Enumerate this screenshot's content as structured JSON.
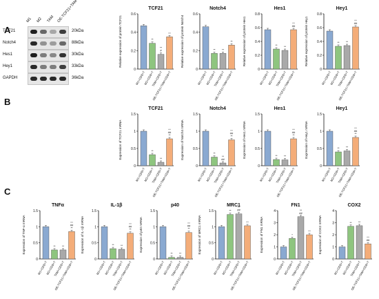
{
  "panels": {
    "a": "A",
    "b": "B",
    "c": "C"
  },
  "western_blot": {
    "lanes": [
      "M1",
      "M2",
      "TAM",
      "OE-TCF21+TAM"
    ],
    "rows": [
      {
        "protein": "TCF21",
        "kda": "20kDa",
        "intensity": [
          0.95,
          0.6,
          0.3,
          0.8
        ]
      },
      {
        "protein": "Notch4",
        "kda": "88kDa",
        "intensity": [
          0.9,
          0.4,
          0.35,
          0.6
        ]
      },
      {
        "protein": "Hes1",
        "kda": "30kDa",
        "intensity": [
          0.95,
          0.5,
          0.45,
          0.85
        ]
      },
      {
        "protein": "Hey1",
        "kda": "33kDa",
        "intensity": [
          0.9,
          0.5,
          0.5,
          0.8
        ]
      },
      {
        "protein": "GAPDH",
        "kda": "36kDa",
        "intensity": [
          0.9,
          0.9,
          0.9,
          0.9
        ]
      }
    ]
  },
  "colors": {
    "m1": "#8aa9d1",
    "m2": "#8ec57f",
    "tam": "#a9a9a9",
    "oe": "#f4ad79"
  },
  "chart_data": [
    {
      "id": "A1",
      "type": "bar",
      "title": "TCF21",
      "ylabel": "Relative expression of protein TCF21",
      "categories": [
        "M1+CD8+T",
        "M2+CD8+T",
        "TAM+CD8+T",
        "OE-TCF21+TAM+CD8+T"
      ],
      "values": [
        0.47,
        0.28,
        0.16,
        0.35
      ],
      "sig": [
        "",
        "**",
        "**\n#",
        "^^"
      ],
      "ylim": [
        0,
        0.6
      ],
      "yticks": [
        0.0,
        0.2,
        0.4,
        0.6
      ]
    },
    {
      "id": "A2",
      "type": "bar",
      "title": "Notch4",
      "ylabel": "Relative expression of protein Notch4",
      "categories": [
        "M1+CD8+T",
        "M2+CD8+T",
        "TAM+CD8+T",
        "OE-TCF21+TAM+CD8+T"
      ],
      "values": [
        0.46,
        0.17,
        0.17,
        0.26
      ],
      "sig": [
        "",
        "**",
        "**",
        "**"
      ],
      "ylim": [
        0,
        0.6
      ],
      "yticks": [
        0.0,
        0.2,
        0.4,
        0.6
      ]
    },
    {
      "id": "A3",
      "type": "bar",
      "title": "Hes1",
      "ylabel": "Relative expression of protein Hes1",
      "categories": [
        "M1+CD8+T",
        "M2+CD8+T",
        "TAM+CD8+T",
        "OE-TCF21+TAM+CD8+T"
      ],
      "values": [
        0.57,
        0.29,
        0.27,
        0.57
      ],
      "sig": [
        "",
        "**",
        "**",
        "^^\n##"
      ],
      "ylim": [
        0,
        0.8
      ],
      "yticks": [
        0.0,
        0.2,
        0.4,
        0.6,
        0.8
      ]
    },
    {
      "id": "A4",
      "type": "bar",
      "title": "Hey1",
      "ylabel": "Relative expression of protein Hey1",
      "categories": [
        "M1+CD8+T",
        "M2+CD8+T",
        "TAM+CD8+T",
        "OE-TCF21+TAM+CD8+T"
      ],
      "values": [
        0.55,
        0.33,
        0.34,
        0.61
      ],
      "sig": [
        "",
        "**",
        "**",
        "^^\n##"
      ],
      "ylim": [
        0,
        0.8
      ],
      "yticks": [
        0.0,
        0.2,
        0.4,
        0.6,
        0.8
      ]
    },
    {
      "id": "B1",
      "type": "bar",
      "title": "TCF21",
      "ylabel": "Expression of TCF21 mRNA",
      "categories": [
        "M1+CD8+T",
        "M2+CD8+T",
        "TAM+CD8+T",
        "OE-TCF21+TAM+CD8+T"
      ],
      "values": [
        1.0,
        0.32,
        0.1,
        0.78
      ],
      "sig": [
        "",
        "**",
        "**",
        "^^\n##\n**"
      ],
      "ylim": [
        0,
        1.5
      ],
      "yticks": [
        0.0,
        0.5,
        1.0,
        1.5
      ]
    },
    {
      "id": "B2",
      "type": "bar",
      "title": "Notch4",
      "ylabel": "Expression of Notch4 mRNA",
      "categories": [
        "M1+CD8+T",
        "M2+CD8+T",
        "TAM+CD8+T",
        "OE-TCF21+TAM+CD8+T"
      ],
      "values": [
        1.0,
        0.25,
        0.08,
        0.75
      ],
      "sig": [
        "",
        "**",
        "**\n##",
        "^^\n##\n**"
      ],
      "ylim": [
        0,
        1.5
      ],
      "yticks": [
        0.0,
        0.5,
        1.0,
        1.5
      ]
    },
    {
      "id": "B3",
      "type": "bar",
      "title": "Hes1",
      "ylabel": "Expression of Hes1 mRNA",
      "categories": [
        "M1+CD8+T",
        "M2+CD8+T",
        "TAM+CD8+T",
        "OE-TCF21+TAM+CD8+T"
      ],
      "values": [
        1.0,
        0.18,
        0.17,
        0.78
      ],
      "sig": [
        "",
        "**",
        "**",
        "^^\n##\n**"
      ],
      "ylim": [
        0,
        1.5
      ],
      "yticks": [
        0.0,
        0.5,
        1.0,
        1.5
      ]
    },
    {
      "id": "B4",
      "type": "bar",
      "title": "Hey1",
      "ylabel": "Expression of Hey1 mRNA",
      "categories": [
        "M1+CD8+T",
        "M2+CD8+T",
        "TAM+CD8+T",
        "OE-TCF21+TAM+CD8+T"
      ],
      "values": [
        1.0,
        0.4,
        0.43,
        0.82
      ],
      "sig": [
        "",
        "**",
        "**",
        "^^\n##\n**"
      ],
      "ylim": [
        0,
        1.5
      ],
      "yticks": [
        0.0,
        0.5,
        1.0,
        1.5
      ]
    },
    {
      "id": "C1",
      "type": "bar",
      "title": "TNFα",
      "ylabel": "Expression of TNF-α mRNA",
      "categories": [
        "M1+CD8+T",
        "M2+CD8+T",
        "TAM+CD8+T",
        "OE-TCF21+TAM+CD8+T"
      ],
      "values": [
        1.0,
        0.28,
        0.28,
        0.85
      ],
      "sig": [
        "",
        "**",
        "**",
        "^^\n##\n**"
      ],
      "ylim": [
        0,
        1.5
      ],
      "yticks": [
        0.0,
        0.5,
        1.0,
        1.5
      ]
    },
    {
      "id": "C2",
      "type": "bar",
      "title": "IL-1β",
      "ylabel": "Expression of IL-1β mRNA",
      "categories": [
        "M1+CD8+T",
        "M2+CD8+T",
        "TAM+CD8+T",
        "OE-TCF21+TAM+CD8+T"
      ],
      "values": [
        1.0,
        0.32,
        0.3,
        0.8
      ],
      "sig": [
        "",
        "**",
        "**",
        "^^\n##\n**"
      ],
      "ylim": [
        0,
        1.5
      ],
      "yticks": [
        0.0,
        0.5,
        1.0,
        1.5
      ]
    },
    {
      "id": "C3",
      "type": "bar",
      "title": "p40",
      "ylabel": "Expression of p40 mRNA",
      "categories": [
        "M1+CD8+T",
        "M2+CD8+T",
        "TAM+CD8+T",
        "OE-TCF21+TAM+CD8+T"
      ],
      "values": [
        1.0,
        0.05,
        0.05,
        0.82
      ],
      "sig": [
        "",
        "**",
        "**",
        "^^\n##\n**"
      ],
      "ylim": [
        0,
        1.5
      ],
      "yticks": [
        0.0,
        0.5,
        1.0,
        1.5
      ]
    },
    {
      "id": "C4",
      "type": "bar",
      "title": "MRC1",
      "ylabel": "Expression of MRC1 mRNA",
      "categories": [
        "M1+CD8+T",
        "M2+CD8+T",
        "TAM+CD8+T",
        "OE-TCF21+TAM+CD8+T"
      ],
      "values": [
        1.0,
        1.38,
        1.4,
        1.03
      ],
      "sig": [
        "",
        "**",
        "**\n##",
        "^^"
      ],
      "ylim": [
        0,
        1.5
      ],
      "yticks": [
        0.0,
        0.5,
        1.0,
        1.5
      ]
    },
    {
      "id": "C5",
      "type": "bar",
      "title": "FN1",
      "ylabel": "Expression of FN1 mRNA",
      "categories": [
        "M1+CD8+T",
        "M2+CD8+T",
        "TAM+CD8+T",
        "OE-TCF21+TAM+CD8+T"
      ],
      "values": [
        1.0,
        1.7,
        3.5,
        2.0
      ],
      "sig": [
        "",
        "*",
        "**\n##",
        "^^"
      ],
      "ylim": [
        0,
        4
      ],
      "yticks": [
        0,
        1,
        2,
        3,
        4
      ]
    },
    {
      "id": "C6",
      "type": "bar",
      "title": "COX2",
      "ylabel": "Expression of COX2 mRNA",
      "categories": [
        "M1+CD8+T",
        "M2+CD8+T",
        "TAM+CD8+T",
        "OE-TCF21+TAM+CD8+T"
      ],
      "values": [
        1.0,
        2.7,
        2.75,
        1.25
      ],
      "sig": [
        "",
        "**",
        "**",
        "^^\n##"
      ],
      "ylim": [
        0,
        4
      ],
      "yticks": [
        0,
        1,
        2,
        3,
        4
      ]
    }
  ]
}
